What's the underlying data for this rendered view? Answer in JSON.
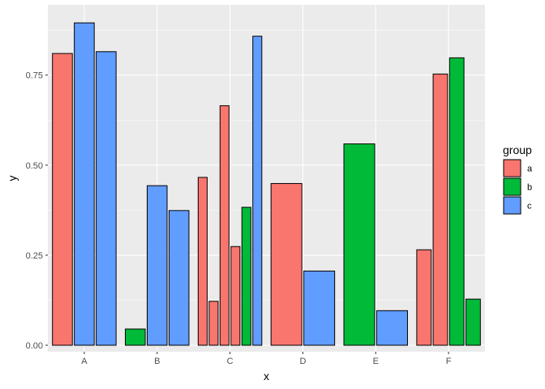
{
  "chart_data": {
    "type": "bar",
    "xlabel": "x",
    "ylabel": "y",
    "ylim": [
      -0.018,
      0.945
    ],
    "yticks": [
      0.0,
      0.25,
      0.5,
      0.75
    ],
    "ytick_labels": [
      "0.00",
      "0.25",
      "0.50",
      "0.75"
    ],
    "categories": [
      "A",
      "B",
      "C",
      "D",
      "E",
      "F"
    ],
    "grid": true,
    "legend": {
      "title": "group",
      "position": "right",
      "entries": [
        {
          "label": "a",
          "color": "#F8766D"
        },
        {
          "label": "b",
          "color": "#00BA38"
        },
        {
          "label": "c",
          "color": "#619CFF"
        }
      ]
    },
    "bars": [
      {
        "category": "A",
        "group": "a",
        "value": 0.81,
        "slot": 0,
        "slots": 3
      },
      {
        "category": "A",
        "group": "c",
        "value": 0.895,
        "slot": 1,
        "slots": 3
      },
      {
        "category": "A",
        "group": "c",
        "value": 0.815,
        "slot": 2,
        "slots": 3
      },
      {
        "category": "B",
        "group": "b",
        "value": 0.045,
        "slot": 0,
        "slots": 3
      },
      {
        "category": "B",
        "group": "c",
        "value": 0.443,
        "slot": 1,
        "slots": 3
      },
      {
        "category": "B",
        "group": "c",
        "value": 0.374,
        "slot": 2,
        "slots": 3
      },
      {
        "category": "C",
        "group": "a",
        "value": 0.466,
        "slot": 0,
        "slots": 6
      },
      {
        "category": "C",
        "group": "a",
        "value": 0.122,
        "slot": 1,
        "slots": 6
      },
      {
        "category": "C",
        "group": "a",
        "value": 0.665,
        "slot": 2,
        "slots": 6
      },
      {
        "category": "C",
        "group": "a",
        "value": 0.274,
        "slot": 3,
        "slots": 6
      },
      {
        "category": "C",
        "group": "b",
        "value": 0.383,
        "slot": 4,
        "slots": 6
      },
      {
        "category": "C",
        "group": "c",
        "value": 0.858,
        "slot": 5,
        "slots": 6
      },
      {
        "category": "D",
        "group": "a",
        "value": 0.449,
        "slot": 0,
        "slots": 2
      },
      {
        "category": "D",
        "group": "c",
        "value": 0.206,
        "slot": 1,
        "slots": 2
      },
      {
        "category": "E",
        "group": "b",
        "value": 0.559,
        "slot": 0,
        "slots": 2
      },
      {
        "category": "E",
        "group": "c",
        "value": 0.096,
        "slot": 1,
        "slots": 2
      },
      {
        "category": "F",
        "group": "a",
        "value": 0.265,
        "slot": 0,
        "slots": 4
      },
      {
        "category": "F",
        "group": "a",
        "value": 0.753,
        "slot": 1,
        "slots": 4
      },
      {
        "category": "F",
        "group": "b",
        "value": 0.798,
        "slot": 2,
        "slots": 4
      },
      {
        "category": "F",
        "group": "b",
        "value": 0.128,
        "slot": 3,
        "slots": 4
      }
    ],
    "colors": {
      "panel_bg": "#EBEBEB",
      "grid_major": "#FFFFFF",
      "tick": "#333333",
      "bar_outline": "#000000"
    }
  }
}
